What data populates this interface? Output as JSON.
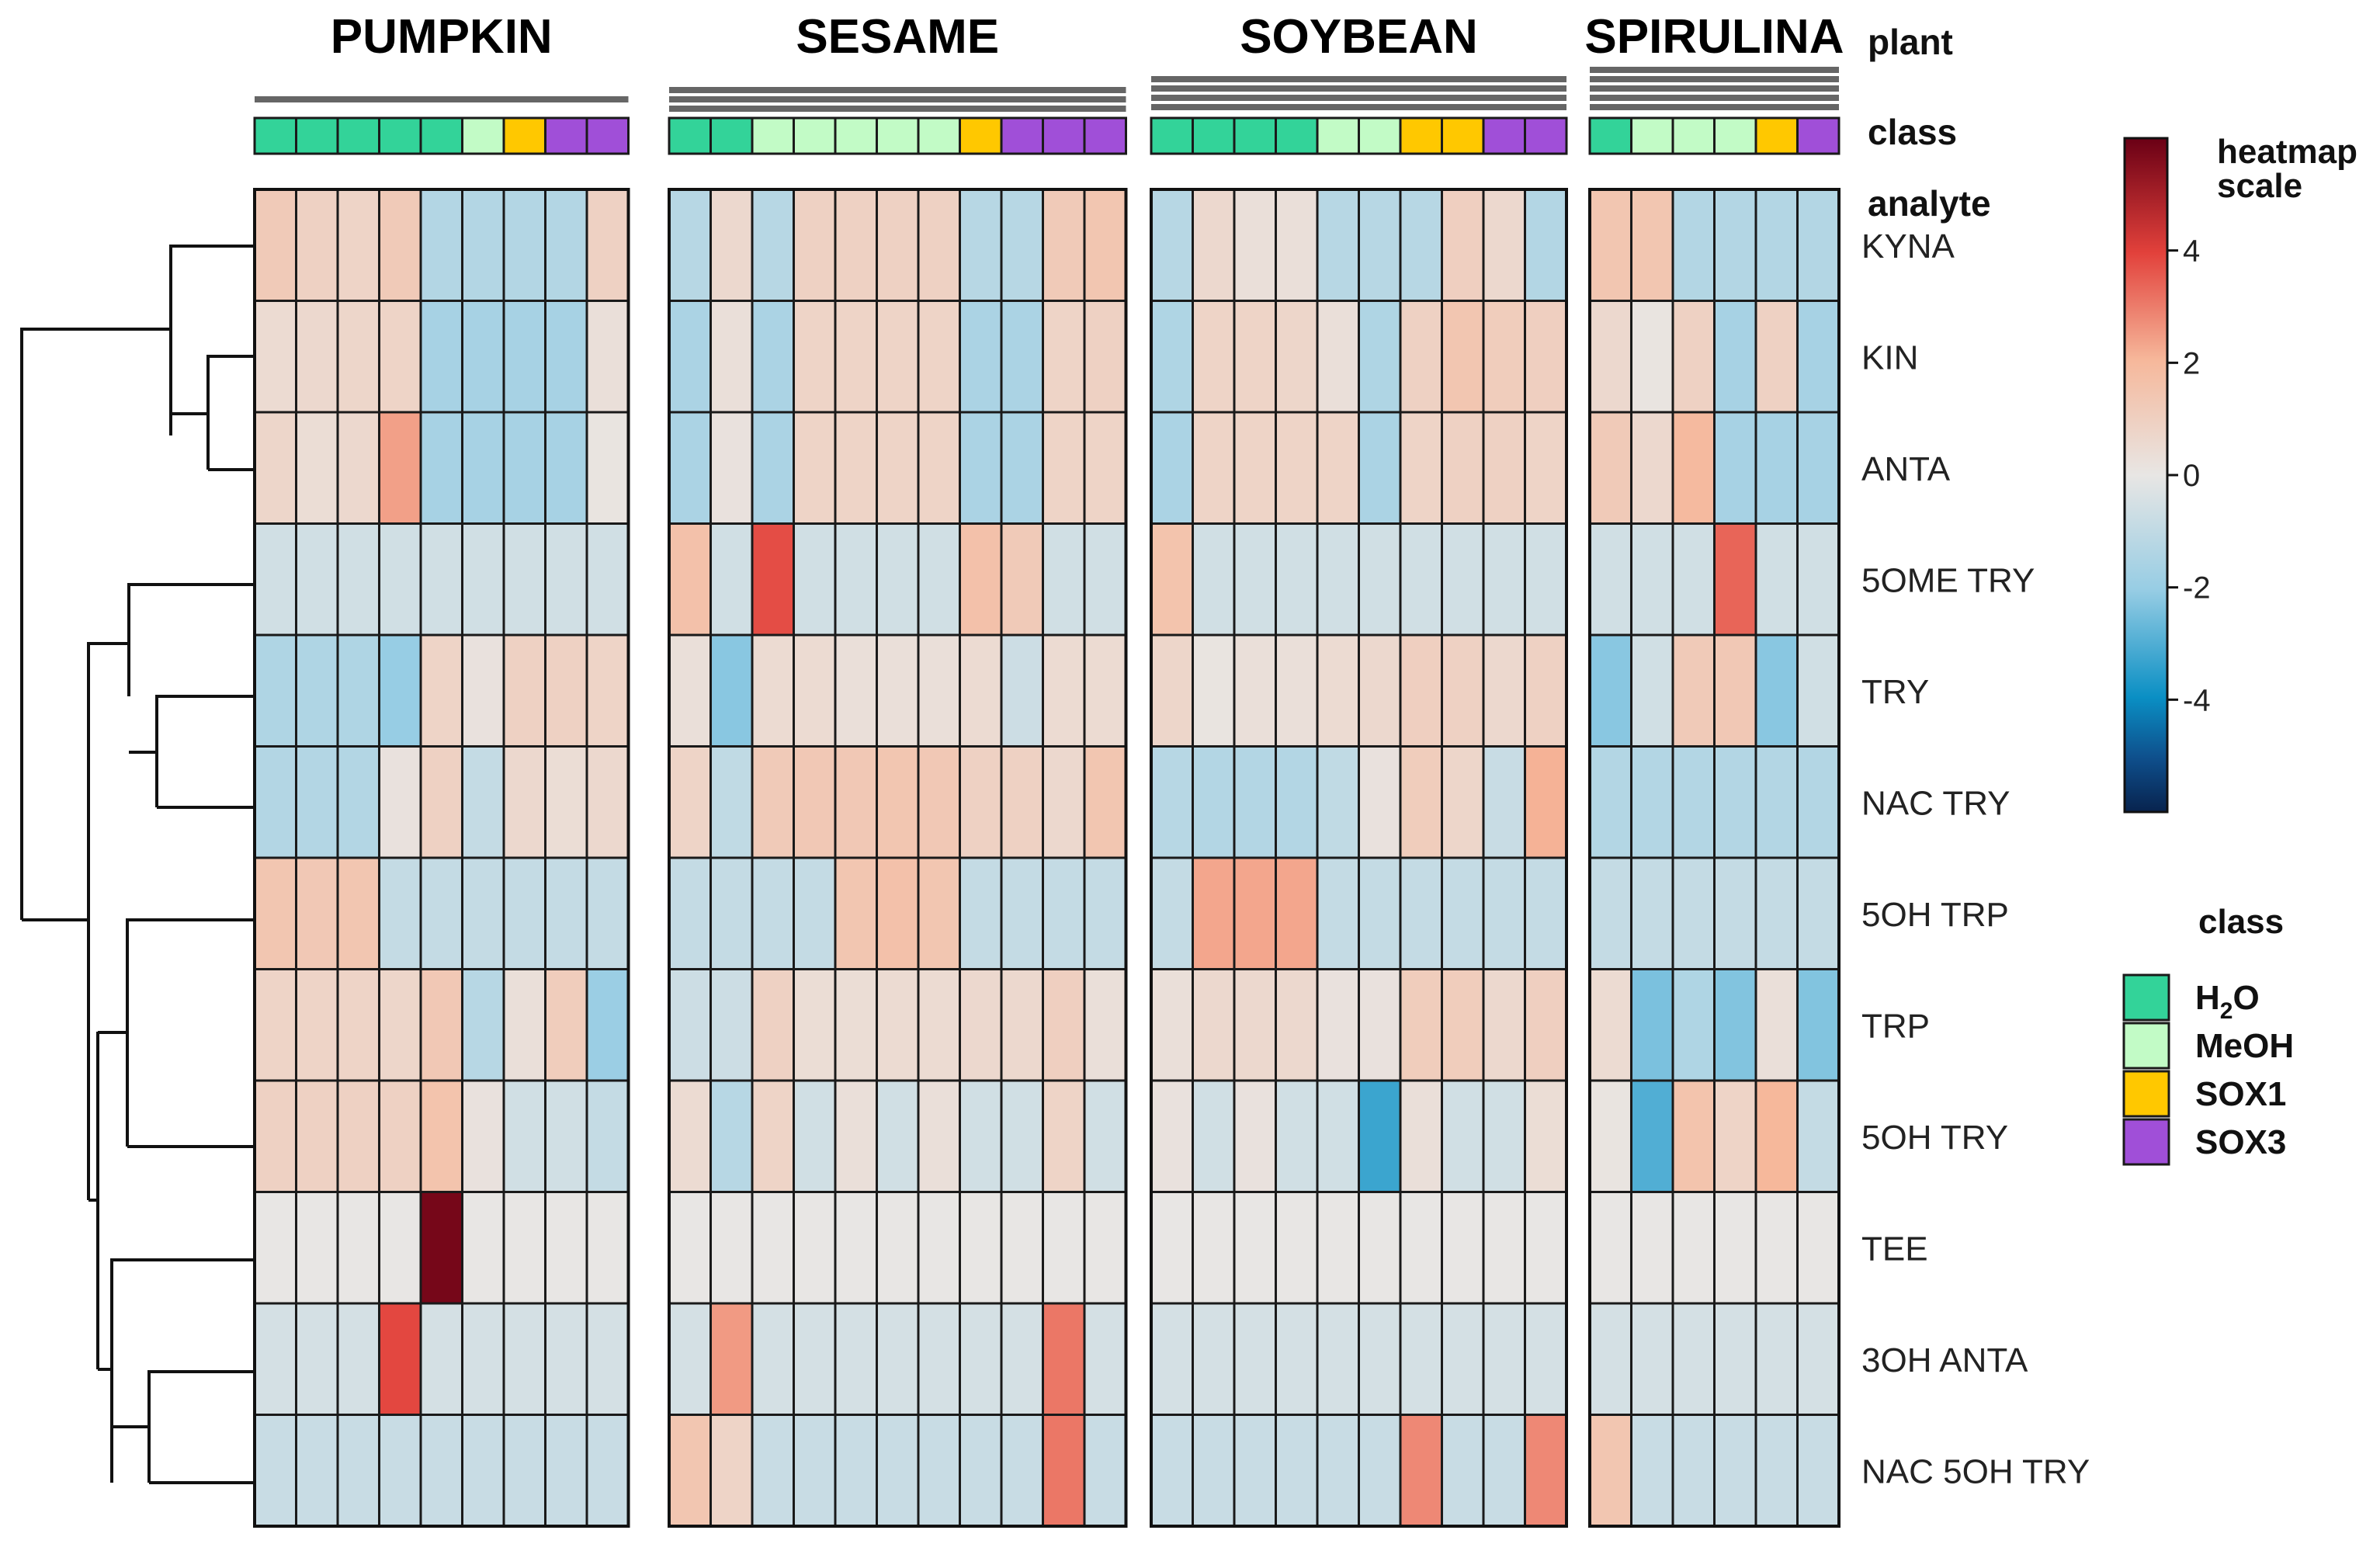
{
  "chart_data": {
    "type": "heatmap",
    "plants": [
      {
        "name": "PUMPKIN",
        "classes": [
          "H2O",
          "H2O",
          "H2O",
          "H2O",
          "H2O",
          "MeOH",
          "SOX1",
          "SOX3",
          "SOX3"
        ]
      },
      {
        "name": "SESAME",
        "classes": [
          "H2O",
          "H2O",
          "MeOH",
          "MeOH",
          "MeOH",
          "MeOH",
          "MeOH",
          "SOX1",
          "SOX3",
          "SOX3",
          "SOX3"
        ]
      },
      {
        "name": "SOYBEAN",
        "classes": [
          "H2O",
          "H2O",
          "H2O",
          "H2O",
          "MeOH",
          "MeOH",
          "SOX1",
          "SOX1",
          "SOX3",
          "SOX3"
        ]
      },
      {
        "name": "SPIRULINA",
        "classes": [
          "H2O",
          "MeOH",
          "MeOH",
          "MeOH",
          "SOX1",
          "SOX3"
        ]
      }
    ],
    "analytes": [
      "KYNA",
      "KIN",
      "ANTA",
      "5OME TRY",
      "TRY",
      "NAC TRY",
      "5OH TRP",
      "TRP",
      "5OH TRY",
      "TEE",
      "3OH ANTA",
      "NAC 5OH TRY"
    ],
    "values": [
      [
        [
          1.2,
          0.9,
          0.8,
          1.2,
          -1.3,
          -1.3,
          -1.3,
          -1.3,
          0.9
        ],
        [
          0.5,
          0.6,
          0.7,
          0.8,
          -1.6,
          -1.6,
          -1.6,
          -1.6,
          0.3
        ],
        [
          0.7,
          0.4,
          0.6,
          2.4,
          -1.6,
          -1.6,
          -1.6,
          -1.6,
          0.1
        ],
        [
          -0.6,
          -0.6,
          -0.6,
          -0.6,
          -0.6,
          -0.6,
          -0.6,
          -0.6,
          -0.6
        ],
        [
          -1.4,
          -1.4,
          -1.4,
          -2.0,
          0.8,
          0.2,
          0.9,
          0.9,
          0.8
        ],
        [
          -1.3,
          -1.3,
          -1.3,
          0.2,
          0.9,
          -0.9,
          0.6,
          0.4,
          0.6
        ],
        [
          1.4,
          1.3,
          1.4,
          -0.9,
          -0.9,
          -0.9,
          -0.9,
          -0.9,
          -0.9
        ],
        [
          0.8,
          0.8,
          0.8,
          0.7,
          1.3,
          -1.2,
          0.3,
          1.1,
          -1.9
        ],
        [
          0.9,
          0.9,
          0.9,
          0.9,
          1.5,
          0.2,
          -0.6,
          -0.6,
          -0.9
        ],
        [
          0,
          0,
          0,
          0,
          5.8,
          0,
          0,
          0,
          0
        ],
        [
          -0.5,
          -0.5,
          -0.5,
          3.9,
          -0.5,
          -0.5,
          -0.5,
          -0.5,
          -0.5
        ],
        [
          -0.8,
          -0.8,
          -0.8,
          -0.8,
          -0.8,
          -0.8,
          -0.8,
          -0.8,
          -0.8
        ]
      ],
      [
        [
          -1.2,
          0.6,
          -1.2,
          0.9,
          0.9,
          0.9,
          0.9,
          -1.2,
          -1.2,
          1.2,
          1.4
        ],
        [
          -1.5,
          0.3,
          -1.5,
          0.8,
          0.8,
          0.8,
          0.8,
          -1.5,
          -1.5,
          0.8,
          0.9
        ],
        [
          -1.5,
          0.2,
          -1.5,
          0.8,
          0.8,
          0.8,
          0.8,
          -1.5,
          -1.5,
          0.8,
          0.8
        ],
        [
          1.6,
          -0.6,
          3.8,
          -0.6,
          -0.6,
          -0.6,
          -0.6,
          1.6,
          1.2,
          -0.6,
          -0.6
        ],
        [
          0.3,
          -2.2,
          0.5,
          0.5,
          0.3,
          0.3,
          0.3,
          0.5,
          -0.7,
          0.5,
          0.5
        ],
        [
          0.8,
          -1.0,
          1.2,
          1.3,
          1.3,
          1.4,
          1.3,
          0.9,
          0.9,
          0.6,
          1.4
        ],
        [
          -0.9,
          -0.9,
          -0.9,
          -0.9,
          1.4,
          1.6,
          1.4,
          -0.9,
          -0.9,
          -0.9,
          -0.9
        ],
        [
          -0.7,
          -0.7,
          0.9,
          0.4,
          0.4,
          0.5,
          0.5,
          0.6,
          0.6,
          1.0,
          0.3
        ],
        [
          0.5,
          -1.2,
          0.8,
          -0.6,
          0.3,
          -0.6,
          0.3,
          -0.6,
          -0.6,
          0.8,
          -0.6
        ],
        [
          0,
          0,
          0,
          0,
          0,
          0,
          0,
          0,
          0,
          0,
          0
        ],
        [
          -0.5,
          2.5,
          -0.5,
          -0.5,
          -0.5,
          -0.5,
          -0.5,
          -0.5,
          -0.5,
          3.1,
          -0.5
        ],
        [
          1.4,
          0.8,
          -0.8,
          -0.8,
          -0.8,
          -0.8,
          -0.8,
          -0.8,
          -0.8,
          3.1,
          -0.8
        ]
      ],
      [
        [
          -1.2,
          0.6,
          0.3,
          0.3,
          -1.2,
          -1.2,
          -1.2,
          1.0,
          0.6,
          -1.3
        ],
        [
          -1.4,
          0.8,
          0.8,
          0.7,
          0.3,
          -1.4,
          0.9,
          1.4,
          1.1,
          1.0
        ],
        [
          -1.5,
          0.8,
          0.8,
          0.8,
          0.8,
          -1.5,
          0.8,
          0.9,
          0.9,
          0.8
        ],
        [
          1.5,
          -0.6,
          -0.6,
          -0.6,
          -0.6,
          -0.6,
          -0.6,
          -0.6,
          -0.6,
          -0.6
        ],
        [
          0.7,
          0.1,
          0.3,
          0.3,
          0.5,
          0.6,
          1.0,
          0.9,
          0.6,
          0.9
        ],
        [
          -1.2,
          -1.3,
          -1.3,
          -1.3,
          -1.0,
          0.2,
          1.1,
          0.7,
          -0.8,
          2.1
        ],
        [
          -0.9,
          2.3,
          2.3,
          2.3,
          -0.9,
          -0.9,
          -0.9,
          -0.9,
          -0.9,
          -0.9
        ],
        [
          0.3,
          0.6,
          0.6,
          0.6,
          0.2,
          0.2,
          1.1,
          1.1,
          0.6,
          1.0
        ],
        [
          0.2,
          -0.6,
          0.2,
          -0.6,
          -0.6,
          -3.3,
          0.3,
          -0.6,
          -0.6,
          0.4
        ],
        [
          0,
          0,
          0,
          0,
          0,
          0,
          0,
          0,
          0,
          0
        ],
        [
          -0.5,
          -0.5,
          -0.5,
          -0.5,
          -0.5,
          -0.5,
          -0.5,
          -0.5,
          -0.5,
          -0.5
        ],
        [
          -0.8,
          -0.8,
          -0.8,
          -0.8,
          -0.8,
          -0.8,
          2.8,
          -0.8,
          -0.8,
          2.8
        ]
      ],
      [
        [
          1.4,
          1.4,
          -1.3,
          -1.3,
          -1.3,
          -1.3
        ],
        [
          0.6,
          0.1,
          0.9,
          -1.6,
          0.9,
          -1.6
        ],
        [
          1.2,
          0.6,
          1.9,
          -1.6,
          -1.6,
          -1.6
        ],
        [
          -0.6,
          -0.6,
          -0.6,
          3.4,
          -0.6,
          -0.6
        ],
        [
          -2.2,
          -0.6,
          1.2,
          1.3,
          -2.2,
          -0.6
        ],
        [
          -1.3,
          -1.3,
          -1.3,
          -1.3,
          -1.3,
          -1.3
        ],
        [
          -0.9,
          -0.9,
          -0.9,
          -0.9,
          -0.9,
          -0.9
        ],
        [
          0.5,
          -2.4,
          -1.4,
          -2.3,
          0.3,
          -2.3
        ],
        [
          0.1,
          -3.0,
          1.5,
          0.8,
          2.0,
          -0.9
        ],
        [
          0,
          0,
          0,
          0,
          0,
          0
        ],
        [
          -0.5,
          -0.5,
          -0.5,
          -0.5,
          -0.5,
          -0.5
        ],
        [
          1.4,
          -0.8,
          -0.8,
          -0.8,
          -0.8,
          -0.8
        ]
      ]
    ],
    "header_labels": {
      "plant": "plant",
      "class": "class",
      "analyte": "analyte"
    },
    "scale": {
      "title_line1": "heatmap",
      "title_line2": "scale",
      "ticks": [
        4,
        2,
        0,
        -2,
        -4
      ],
      "range": [
        -6,
        6
      ]
    },
    "class_legend": {
      "title": "class",
      "items": [
        {
          "key": "H2O",
          "label_main": "H",
          "label_sub": "2",
          "label_end": "O",
          "color": "#33d399"
        },
        {
          "key": "MeOH",
          "label_main": "MeOH",
          "label_sub": "",
          "label_end": "",
          "color": "#c2fbc6"
        },
        {
          "key": "SOX1",
          "label_main": "SOX1",
          "label_sub": "",
          "label_end": "",
          "color": "#ffc800"
        },
        {
          "key": "SOX3",
          "label_main": "SOX3",
          "label_sub": "",
          "label_end": "",
          "color": "#a04fd8"
        }
      ]
    }
  }
}
